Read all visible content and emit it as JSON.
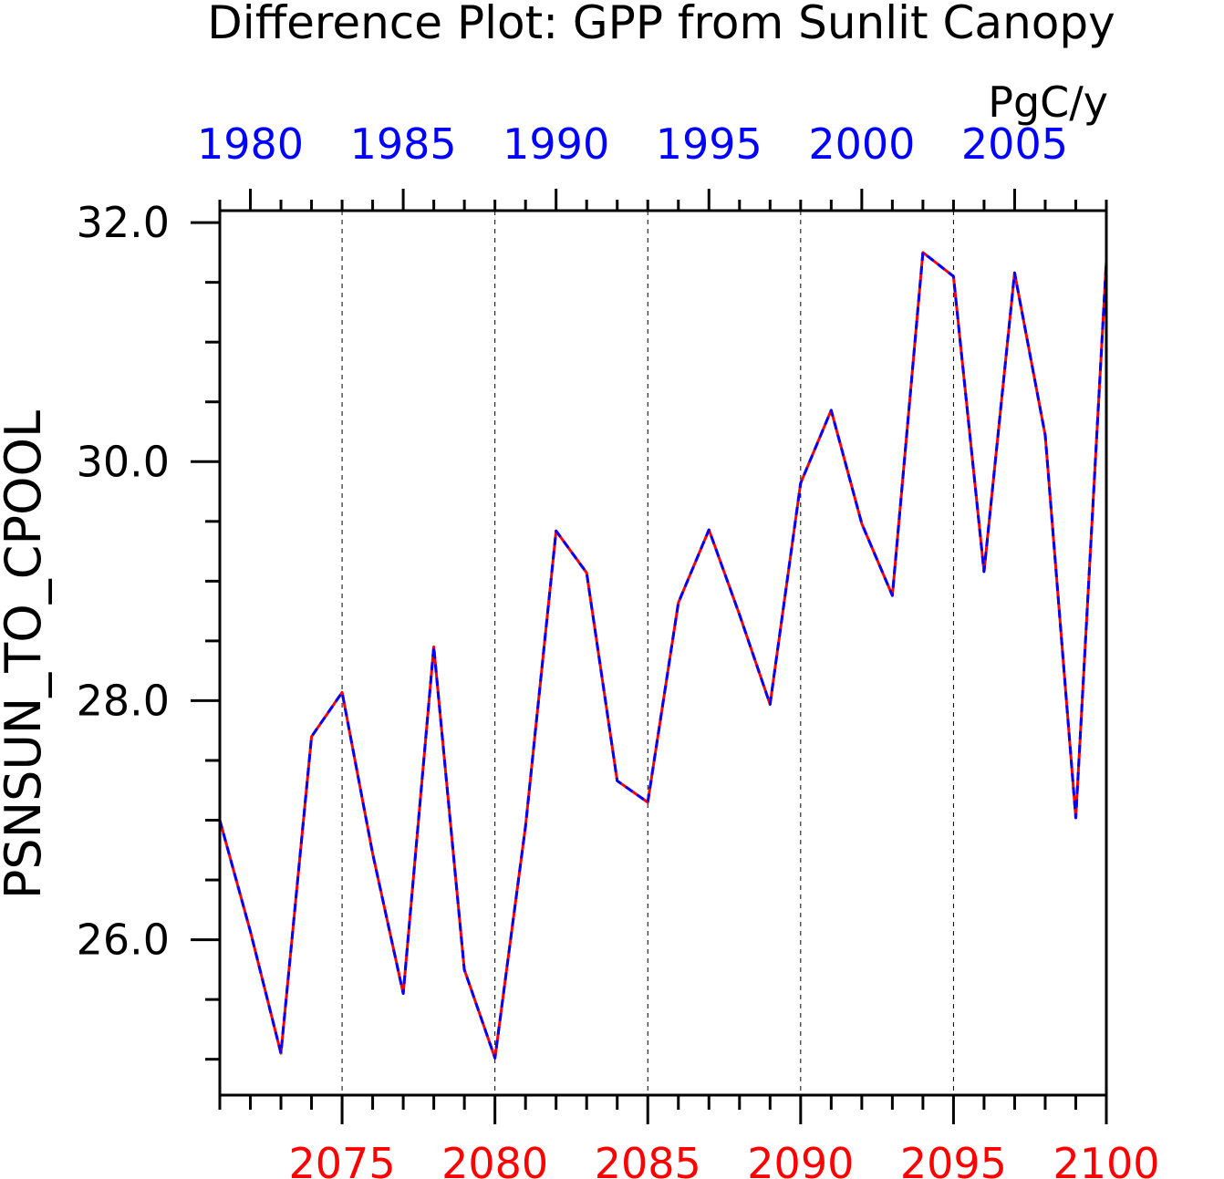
{
  "chart_data": {
    "type": "line",
    "title": "Difference Plot: GPP from Sunlit Canopy",
    "units": "PgC/y",
    "ylabel": "PSNSUN_TO_CPOOL",
    "ylim": [
      24.7,
      32.1
    ],
    "y_ticks_labeled": [
      "26.0",
      "28.0",
      "30.0",
      "32.0"
    ],
    "y_tick_values": [
      26.0,
      28.0,
      30.0,
      32.0
    ],
    "y_minor_tick_values": [
      25.0,
      25.5,
      26.5,
      27.0,
      27.5,
      28.5,
      29.0,
      29.5,
      30.5,
      31.0,
      31.5
    ],
    "bottom_axis": {
      "range": [
        2071,
        2100
      ],
      "tick_labels": [
        "2075",
        "2080",
        "2085",
        "2090",
        "2095",
        "2100"
      ],
      "tick_values": [
        2075,
        2080,
        2085,
        2090,
        2095,
        2100
      ],
      "color": "#ff0000"
    },
    "top_axis": {
      "range": [
        1979,
        2008
      ],
      "tick_labels": [
        "1980",
        "1985",
        "1990",
        "1995",
        "2000",
        "2005"
      ],
      "tick_values": [
        1980,
        1985,
        1990,
        1995,
        2000,
        2005
      ],
      "color": "#0000ff"
    },
    "grid": "vertical dashed at major bottom-axis ticks",
    "series": [
      {
        "color": "#ff0000",
        "style": "solid",
        "x": [
          2071,
          2072,
          2073,
          2074,
          2075,
          2076,
          2077,
          2078,
          2079,
          2080,
          2081,
          2082,
          2083,
          2084,
          2085,
          2086,
          2087,
          2088,
          2089,
          2090,
          2091,
          2092,
          2093,
          2094,
          2095,
          2096,
          2097,
          2098,
          2099,
          2100
        ],
        "values": [
          27.0,
          26.07,
          25.05,
          27.7,
          28.07,
          26.72,
          25.55,
          28.45,
          25.75,
          25.01,
          26.95,
          29.42,
          29.07,
          27.33,
          27.15,
          28.82,
          29.43,
          28.72,
          27.97,
          29.82,
          30.43,
          29.48,
          28.88,
          31.75,
          31.55,
          29.08,
          31.58,
          30.22,
          27.02,
          31.68
        ]
      },
      {
        "color": "#0000ff",
        "style": "dashed",
        "x": [
          1979,
          1980,
          1981,
          1982,
          1983,
          1984,
          1985,
          1986,
          1987,
          1988,
          1989,
          1990,
          1991,
          1992,
          1993,
          1994,
          1995,
          1996,
          1997,
          1998,
          1999,
          2000,
          2001,
          2002,
          2003,
          2004,
          2005,
          2006,
          2007,
          2008
        ],
        "values": [
          27.0,
          26.07,
          25.05,
          27.7,
          28.07,
          26.72,
          25.55,
          28.45,
          25.75,
          25.01,
          26.95,
          29.42,
          29.07,
          27.33,
          27.15,
          28.82,
          29.43,
          28.72,
          27.97,
          29.82,
          30.43,
          29.48,
          28.88,
          31.75,
          31.55,
          29.08,
          31.58,
          30.22,
          27.02,
          31.68
        ]
      }
    ]
  }
}
